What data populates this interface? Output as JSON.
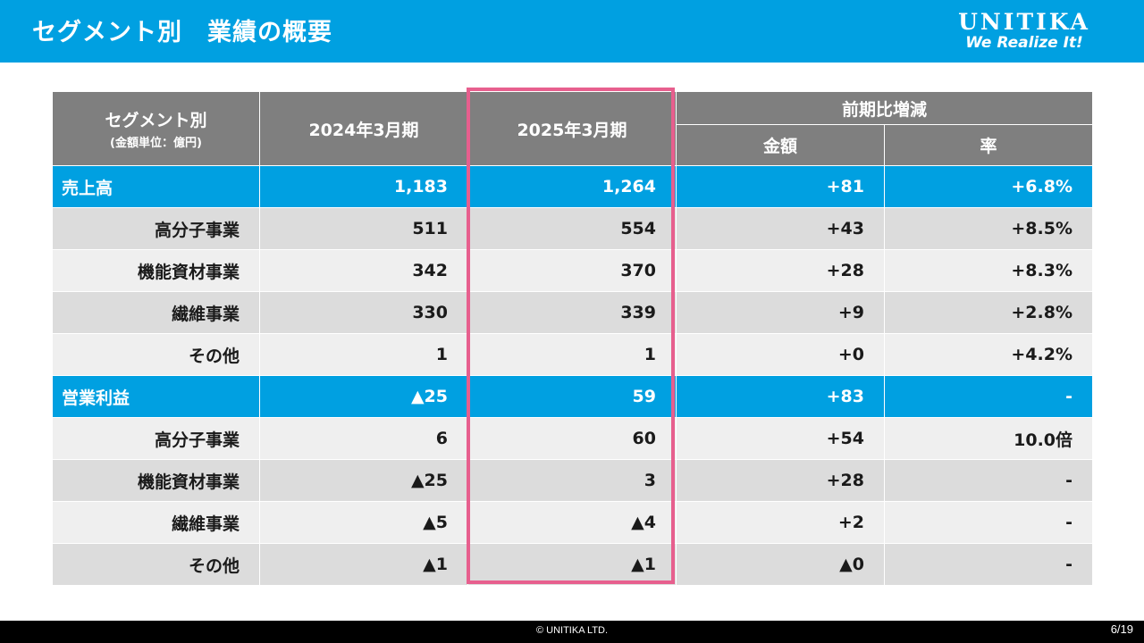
{
  "header": {
    "title": "セグメント別　業績の概要",
    "logo_word": "UNITIKA",
    "logo_tagline": "We Realize It!"
  },
  "table": {
    "header_segment": "セグメント別",
    "header_unit": "(金額単位：億円)",
    "header_fy2024": "2024年3月期",
    "header_fy2025": "2025年3月期",
    "header_change": "前期比増減",
    "header_amount": "金額",
    "header_rate": "率",
    "rows": [
      {
        "label": "売上高",
        "fy2024": "1,183",
        "fy2025": "1,264",
        "amount": "+81",
        "rate": "+6.8%"
      },
      {
        "label": "高分子事業",
        "fy2024": "511",
        "fy2025": "554",
        "amount": "+43",
        "rate": "+8.5%"
      },
      {
        "label": "機能資材事業",
        "fy2024": "342",
        "fy2025": "370",
        "amount": "+28",
        "rate": "+8.3%"
      },
      {
        "label": "繊維事業",
        "fy2024": "330",
        "fy2025": "339",
        "amount": "+9",
        "rate": "+2.8%"
      },
      {
        "label": "その他",
        "fy2024": "1",
        "fy2025": "1",
        "amount": "+0",
        "rate": "+4.2%"
      },
      {
        "label": "営業利益",
        "fy2024": "▲25",
        "fy2025": "59",
        "amount": "+83",
        "rate": "-"
      },
      {
        "label": "高分子事業",
        "fy2024": "6",
        "fy2025": "60",
        "amount": "+54",
        "rate": "10.0倍"
      },
      {
        "label": "機能資材事業",
        "fy2024": "▲25",
        "fy2025": "3",
        "amount": "+28",
        "rate": "-"
      },
      {
        "label": "繊維事業",
        "fy2024": "▲5",
        "fy2025": "▲4",
        "amount": "+2",
        "rate": "-"
      },
      {
        "label": "その他",
        "fy2024": "▲1",
        "fy2025": "▲1",
        "amount": "▲0",
        "rate": "-"
      }
    ]
  },
  "footer": {
    "copyright": "© UNITIKA LTD.",
    "page": "6/19"
  },
  "colors": {
    "brand_blue": "#00a0e1",
    "header_gray": "#7f7f7f",
    "highlight_pink": "#e75f8e"
  }
}
